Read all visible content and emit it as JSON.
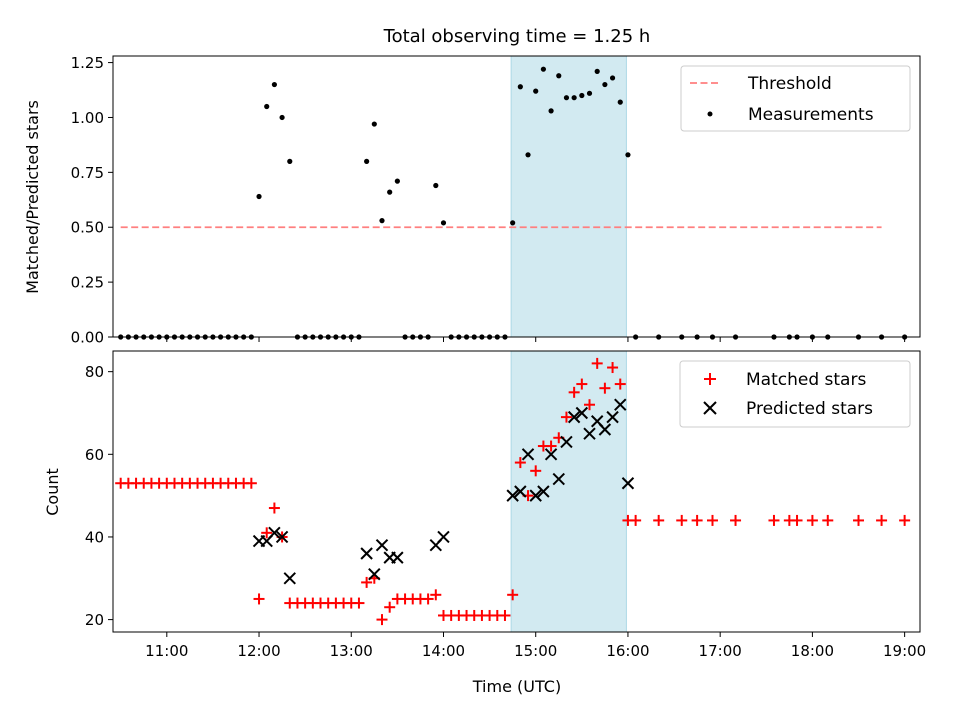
{
  "title": "Total observing time = 1.25 h",
  "xlabel": "Time (UTC)",
  "x_tick_labels": [
    "11:00",
    "12:00",
    "13:00",
    "14:00",
    "15:00",
    "16:00",
    "17:00",
    "18:00",
    "19:00"
  ],
  "colors": {
    "threshold": "#ff7f7f",
    "measurement": "#000000",
    "matched": "#ff0000",
    "predicted": "#000000",
    "highlight": "#add8e6"
  },
  "chart_data": [
    {
      "type": "scatter",
      "ylabel": "Matched/Predicted stars",
      "xlim": [
        "10:25",
        "19:10"
      ],
      "ylim": [
        0,
        1.28
      ],
      "y_tick_labels": [
        "0.00",
        "0.25",
        "0.50",
        "0.75",
        "1.00",
        "1.25"
      ],
      "grid": false,
      "legend_position": "top-right",
      "highlight_span": [
        "14:44",
        "15:59"
      ],
      "threshold": {
        "name": "Threshold",
        "y": 0.5,
        "x": [
          "10:30",
          "18:45"
        ]
      },
      "series": [
        {
          "name": "Measurements",
          "points": [
            [
              "10:30",
              0
            ],
            [
              "10:35",
              0
            ],
            [
              "10:40",
              0
            ],
            [
              "10:45",
              0
            ],
            [
              "10:50",
              0
            ],
            [
              "10:55",
              0
            ],
            [
              "11:00",
              0
            ],
            [
              "11:05",
              0
            ],
            [
              "11:10",
              0
            ],
            [
              "11:15",
              0
            ],
            [
              "11:20",
              0
            ],
            [
              "11:25",
              0
            ],
            [
              "11:30",
              0
            ],
            [
              "11:35",
              0
            ],
            [
              "11:40",
              0
            ],
            [
              "11:45",
              0
            ],
            [
              "11:50",
              0
            ],
            [
              "11:55",
              0
            ],
            [
              "12:00",
              0.64
            ],
            [
              "12:05",
              1.05
            ],
            [
              "12:10",
              1.15
            ],
            [
              "12:15",
              1.0
            ],
            [
              "12:20",
              0.8
            ],
            [
              "12:25",
              0
            ],
            [
              "12:30",
              0
            ],
            [
              "12:35",
              0
            ],
            [
              "12:40",
              0
            ],
            [
              "12:45",
              0
            ],
            [
              "12:50",
              0
            ],
            [
              "12:55",
              0
            ],
            [
              "13:00",
              0
            ],
            [
              "13:05",
              0
            ],
            [
              "13:10",
              0.8
            ],
            [
              "13:15",
              0.97
            ],
            [
              "13:20",
              0.53
            ],
            [
              "13:25",
              0.66
            ],
            [
              "13:30",
              0.71
            ],
            [
              "13:35",
              0
            ],
            [
              "13:40",
              0
            ],
            [
              "13:45",
              0
            ],
            [
              "13:50",
              0
            ],
            [
              "13:55",
              0.69
            ],
            [
              "14:00",
              0.52
            ],
            [
              "14:05",
              0
            ],
            [
              "14:10",
              0
            ],
            [
              "14:15",
              0
            ],
            [
              "14:20",
              0
            ],
            [
              "14:25",
              0
            ],
            [
              "14:30",
              0
            ],
            [
              "14:35",
              0
            ],
            [
              "14:40",
              0
            ],
            [
              "14:45",
              0.52
            ],
            [
              "14:50",
              1.14
            ],
            [
              "14:55",
              0.83
            ],
            [
              "15:00",
              1.12
            ],
            [
              "15:05",
              1.22
            ],
            [
              "15:10",
              1.03
            ],
            [
              "15:15",
              1.19
            ],
            [
              "15:20",
              1.09
            ],
            [
              "15:25",
              1.09
            ],
            [
              "15:30",
              1.1
            ],
            [
              "15:35",
              1.11
            ],
            [
              "15:40",
              1.21
            ],
            [
              "15:45",
              1.15
            ],
            [
              "15:50",
              1.18
            ],
            [
              "15:55",
              1.07
            ],
            [
              "16:00",
              0.83
            ],
            [
              "16:05",
              0
            ],
            [
              "16:20",
              0
            ],
            [
              "16:35",
              0
            ],
            [
              "16:45",
              0
            ],
            [
              "16:55",
              0
            ],
            [
              "17:10",
              0
            ],
            [
              "17:35",
              0
            ],
            [
              "17:45",
              0
            ],
            [
              "17:50",
              0
            ],
            [
              "18:00",
              0
            ],
            [
              "18:10",
              0
            ],
            [
              "18:30",
              0
            ],
            [
              "18:45",
              0
            ],
            [
              "19:00",
              0
            ]
          ]
        }
      ]
    },
    {
      "type": "scatter",
      "ylabel": "Count",
      "xlim": [
        "10:25",
        "19:10"
      ],
      "ylim": [
        17,
        85
      ],
      "y_tick_labels": [
        "20",
        "40",
        "60",
        "80"
      ],
      "grid": false,
      "legend_position": "top-right",
      "highlight_span": [
        "14:44",
        "15:59"
      ],
      "series": [
        {
          "name": "Matched stars",
          "points": [
            [
              "10:30",
              53
            ],
            [
              "10:35",
              53
            ],
            [
              "10:40",
              53
            ],
            [
              "10:45",
              53
            ],
            [
              "10:50",
              53
            ],
            [
              "10:55",
              53
            ],
            [
              "11:00",
              53
            ],
            [
              "11:05",
              53
            ],
            [
              "11:10",
              53
            ],
            [
              "11:15",
              53
            ],
            [
              "11:20",
              53
            ],
            [
              "11:25",
              53
            ],
            [
              "11:30",
              53
            ],
            [
              "11:35",
              53
            ],
            [
              "11:40",
              53
            ],
            [
              "11:45",
              53
            ],
            [
              "11:50",
              53
            ],
            [
              "11:55",
              53
            ],
            [
              "12:00",
              25
            ],
            [
              "12:05",
              41
            ],
            [
              "12:10",
              47
            ],
            [
              "12:15",
              40
            ],
            [
              "12:20",
              24
            ],
            [
              "12:25",
              24
            ],
            [
              "12:30",
              24
            ],
            [
              "12:35",
              24
            ],
            [
              "12:40",
              24
            ],
            [
              "12:45",
              24
            ],
            [
              "12:50",
              24
            ],
            [
              "12:55",
              24
            ],
            [
              "13:00",
              24
            ],
            [
              "13:05",
              24
            ],
            [
              "13:10",
              29
            ],
            [
              "13:15",
              30
            ],
            [
              "13:20",
              20
            ],
            [
              "13:25",
              23
            ],
            [
              "13:30",
              25
            ],
            [
              "13:35",
              25
            ],
            [
              "13:40",
              25
            ],
            [
              "13:45",
              25
            ],
            [
              "13:50",
              25
            ],
            [
              "13:55",
              26
            ],
            [
              "14:00",
              21
            ],
            [
              "14:05",
              21
            ],
            [
              "14:10",
              21
            ],
            [
              "14:15",
              21
            ],
            [
              "14:20",
              21
            ],
            [
              "14:25",
              21
            ],
            [
              "14:30",
              21
            ],
            [
              "14:35",
              21
            ],
            [
              "14:40",
              21
            ],
            [
              "14:45",
              26
            ],
            [
              "14:50",
              58
            ],
            [
              "14:55",
              50
            ],
            [
              "15:00",
              56
            ],
            [
              "15:05",
              62
            ],
            [
              "15:10",
              62
            ],
            [
              "15:15",
              64
            ],
            [
              "15:20",
              69
            ],
            [
              "15:25",
              75
            ],
            [
              "15:30",
              77
            ],
            [
              "15:35",
              72
            ],
            [
              "15:40",
              82
            ],
            [
              "15:45",
              76
            ],
            [
              "15:50",
              81
            ],
            [
              "15:55",
              77
            ],
            [
              "16:00",
              44
            ],
            [
              "16:05",
              44
            ],
            [
              "16:20",
              44
            ],
            [
              "16:35",
              44
            ],
            [
              "16:45",
              44
            ],
            [
              "16:55",
              44
            ],
            [
              "17:10",
              44
            ],
            [
              "17:35",
              44
            ],
            [
              "17:45",
              44
            ],
            [
              "17:50",
              44
            ],
            [
              "18:00",
              44
            ],
            [
              "18:10",
              44
            ],
            [
              "18:30",
              44
            ],
            [
              "18:45",
              44
            ],
            [
              "19:00",
              44
            ]
          ]
        },
        {
          "name": "Predicted stars",
          "points": [
            [
              "12:00",
              39
            ],
            [
              "12:05",
              39
            ],
            [
              "12:10",
              41
            ],
            [
              "12:15",
              40
            ],
            [
              "12:20",
              30
            ],
            [
              "13:10",
              36
            ],
            [
              "13:15",
              31
            ],
            [
              "13:20",
              38
            ],
            [
              "13:25",
              35
            ],
            [
              "13:30",
              35
            ],
            [
              "13:55",
              38
            ],
            [
              "14:00",
              40
            ],
            [
              "14:45",
              50
            ],
            [
              "14:50",
              51
            ],
            [
              "14:55",
              60
            ],
            [
              "15:00",
              50
            ],
            [
              "15:05",
              51
            ],
            [
              "15:10",
              60
            ],
            [
              "15:15",
              54
            ],
            [
              "15:20",
              63
            ],
            [
              "15:25",
              69
            ],
            [
              "15:30",
              70
            ],
            [
              "15:35",
              65
            ],
            [
              "15:40",
              68
            ],
            [
              "15:45",
              66
            ],
            [
              "15:50",
              69
            ],
            [
              "15:55",
              72
            ],
            [
              "16:00",
              53
            ]
          ]
        }
      ]
    }
  ]
}
